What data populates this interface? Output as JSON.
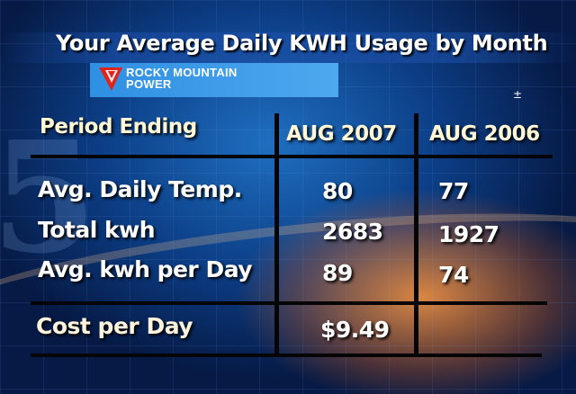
{
  "title": "Your Average Daily KWH Usage by Month",
  "logo": {
    "line1": "ROCKY MOUNTAIN",
    "line2": "POWER"
  },
  "plus_glyph": "±",
  "table": {
    "header": {
      "label": "Period Ending",
      "col1": "AUG 2007",
      "col2": "AUG 2006"
    },
    "rows": [
      {
        "label": "Avg. Daily Temp.",
        "col1": "80",
        "col2": "77"
      },
      {
        "label": "Total kwh",
        "col1": "2683",
        "col2": "1927"
      },
      {
        "label": "Avg. kwh per Day",
        "col1": "89",
        "col2": "74"
      }
    ],
    "cost": {
      "label": "Cost per Day",
      "col1": "$9.49",
      "col2": ""
    }
  },
  "colors": {
    "logo_band": "#3a98e8",
    "logo_mark_red": "#e2231a",
    "lines": "#050505"
  }
}
